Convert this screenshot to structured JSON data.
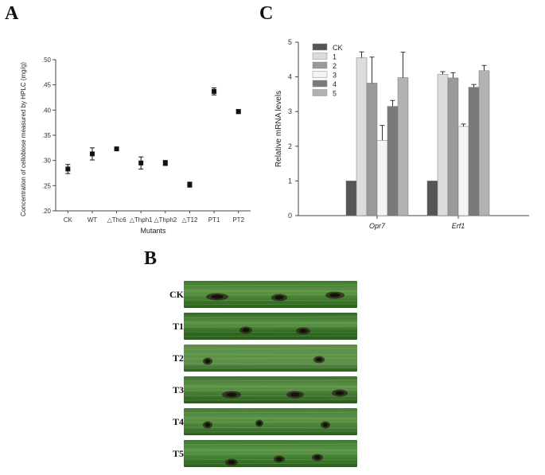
{
  "panels": {
    "a": "A",
    "b": "B",
    "c": "C"
  },
  "chart_data": [
    {
      "type": "scatter",
      "panel": "A",
      "title": "",
      "xlabel": "Mutants",
      "ylabel": "Concentration of cellobiose measured by HPLC (mg/g)",
      "categories": [
        "CK",
        "WT",
        "△Thc6",
        "△Thph1",
        "△Thph2",
        "△T12",
        "PT1",
        "PT2"
      ],
      "values": [
        0.283,
        0.313,
        0.323,
        0.295,
        0.295,
        0.252,
        0.437,
        0.397
      ],
      "errors": [
        0.009,
        0.012,
        0.003,
        0.012,
        0.005,
        0.005,
        0.007,
        0.004
      ],
      "ylim": [
        0.2,
        0.5
      ],
      "yticks": [
        ".20",
        ".25",
        ".30",
        ".35",
        ".40",
        ".45",
        ".50"
      ],
      "grid": false
    },
    {
      "type": "bar",
      "panel": "C",
      "title": "",
      "xlabel": "",
      "ylabel": "Relative mRNA levels",
      "categories": [
        "Opr7",
        "Erf1"
      ],
      "series": [
        {
          "name": "CK",
          "values": [
            1,
            1
          ],
          "errors": [
            0,
            0
          ],
          "color": "#555555"
        },
        {
          "name": "1",
          "values": [
            4.55,
            4.07
          ],
          "errors": [
            0.17,
            0.08
          ],
          "color": "#dcdcdc"
        },
        {
          "name": "2",
          "values": [
            3.82,
            3.97
          ],
          "errors": [
            0.75,
            0.15
          ],
          "color": "#9a9a9a"
        },
        {
          "name": "3",
          "values": [
            2.17,
            2.57
          ],
          "errors": [
            0.43,
            0.07
          ],
          "color": "#f4f4f4"
        },
        {
          "name": "4",
          "values": [
            3.15,
            3.7
          ],
          "errors": [
            0.17,
            0.08
          ],
          "color": "#7a7a7a"
        },
        {
          "name": "5",
          "values": [
            3.98,
            4.18
          ],
          "errors": [
            0.73,
            0.15
          ],
          "color": "#b2b2b2"
        }
      ],
      "ylim": [
        0,
        5
      ],
      "yticks": [
        "0",
        "1",
        "2",
        "3",
        "4",
        "5"
      ],
      "legend": "top-left",
      "grid": false
    }
  ],
  "leaves": [
    {
      "label": "CK",
      "tint": "#3d7a2c"
    },
    {
      "label": "T1",
      "tint": "#2f6a22"
    },
    {
      "label": "T2",
      "tint": "#5d8e4a"
    },
    {
      "label": "T3",
      "tint": "#3f7430"
    },
    {
      "label": "T4",
      "tint": "#467d35"
    },
    {
      "label": "T5",
      "tint": "#3b7a2c"
    }
  ]
}
